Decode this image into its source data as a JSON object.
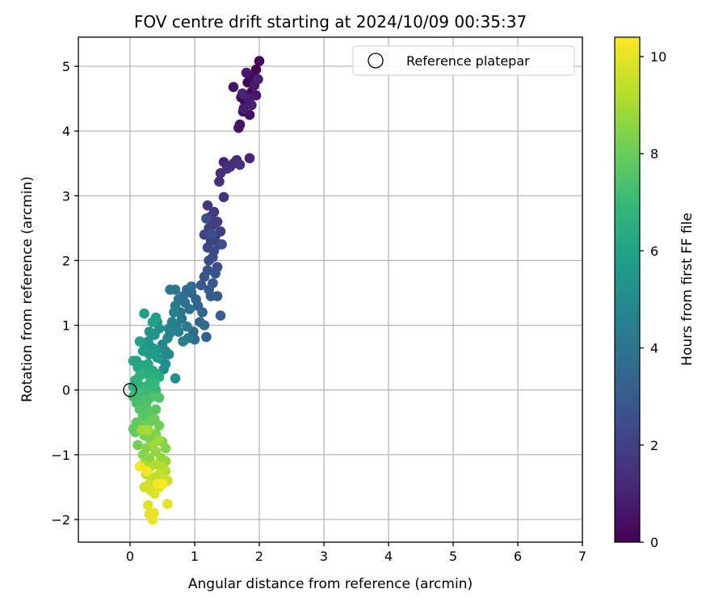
{
  "chart_data": {
    "type": "scatter",
    "title": "FOV centre drift starting at 2024/10/09 00:35:37",
    "xlabel": "Angular distance from reference (arcmin)",
    "ylabel": "Rotation from reference (arcmin)",
    "xlim": [
      -0.8,
      7
    ],
    "ylim": [
      -2.35,
      5.45
    ],
    "xticks": [
      0,
      1,
      2,
      3,
      4,
      5,
      6,
      7
    ],
    "yticks": [
      -2,
      -1,
      0,
      1,
      2,
      3,
      4,
      5
    ],
    "grid": true,
    "legend": {
      "placement": "top-right",
      "entries": [
        {
          "label": "Reference platepar",
          "marker": "open-circle"
        }
      ]
    },
    "reference_point": {
      "x": 0,
      "y": 0
    },
    "colorbar": {
      "label": "Hours from first FF file",
      "colormap": "viridis",
      "range": [
        0,
        10.4
      ],
      "ticks": [
        0,
        2,
        4,
        6,
        8,
        10
      ],
      "colors": [
        "#440154",
        "#482878",
        "#3e4989",
        "#31688e",
        "#26828e",
        "#1f9e89",
        "#35b779",
        "#6ece58",
        "#b5de2b",
        "#fde725"
      ]
    },
    "series": [
      {
        "points": [
          [
            1.95,
            4.95
          ],
          [
            1.82,
            4.75
          ],
          [
            2.0,
            5.08
          ],
          [
            1.88,
            4.6
          ],
          [
            1.72,
            4.52
          ],
          [
            1.78,
            4.45
          ],
          [
            1.9,
            4.85
          ],
          [
            1.75,
            4.3
          ],
          [
            1.85,
            4.25
          ],
          [
            1.7,
            4.1
          ],
          [
            1.68,
            4.05
          ],
          [
            1.6,
            4.68
          ],
          [
            1.95,
            4.55
          ],
          [
            1.8,
            4.9
          ],
          [
            1.92,
            4.7
          ],
          [
            1.84,
            4.5
          ],
          [
            1.76,
            4.35
          ],
          [
            1.88,
            4.4
          ],
          [
            1.98,
            4.8
          ],
          [
            1.74,
            4.58
          ],
          [
            1.85,
            3.58
          ],
          [
            1.65,
            3.55
          ],
          [
            1.45,
            3.52
          ],
          [
            1.55,
            3.45
          ],
          [
            1.4,
            3.35
          ],
          [
            1.38,
            3.22
          ],
          [
            1.6,
            3.5
          ],
          [
            1.5,
            3.42
          ],
          [
            1.7,
            3.48
          ],
          [
            1.45,
            2.98
          ],
          [
            1.2,
            2.85
          ],
          [
            1.3,
            2.75
          ],
          [
            1.25,
            2.68
          ],
          [
            1.35,
            2.6
          ],
          [
            1.28,
            2.55
          ],
          [
            1.22,
            2.5
          ],
          [
            1.4,
            2.45
          ],
          [
            1.15,
            2.4
          ],
          [
            1.32,
            2.38
          ],
          [
            1.25,
            2.3
          ],
          [
            1.38,
            2.25
          ],
          [
            1.2,
            2.2
          ],
          [
            1.3,
            2.15
          ],
          [
            1.28,
            2.05
          ],
          [
            1.22,
            2.0
          ],
          [
            1.35,
            1.9
          ],
          [
            1.42,
            2.25
          ],
          [
            1.18,
            2.65
          ],
          [
            1.26,
            2.42
          ],
          [
            1.2,
            1.85
          ],
          [
            1.32,
            1.8
          ],
          [
            1.15,
            1.75
          ],
          [
            1.28,
            1.65
          ],
          [
            1.22,
            1.55
          ],
          [
            1.1,
            1.62
          ],
          [
            1.35,
            1.45
          ],
          [
            1.25,
            1.45
          ],
          [
            1.4,
            1.15
          ],
          [
            1.18,
            0.82
          ],
          [
            1.05,
            1.3
          ],
          [
            1.12,
            1.2
          ],
          [
            0.95,
            1.5
          ],
          [
            1.02,
            1.4
          ],
          [
            1.08,
            1.05
          ],
          [
            0.98,
            0.9
          ],
          [
            1.0,
            0.78
          ],
          [
            1.15,
            1.0
          ],
          [
            0.88,
            1.55
          ],
          [
            0.95,
            1.6
          ],
          [
            0.82,
            1.45
          ],
          [
            0.85,
            1.35
          ],
          [
            0.92,
            1.25
          ],
          [
            0.75,
            1.4
          ],
          [
            0.7,
            1.55
          ],
          [
            0.62,
            1.55
          ],
          [
            0.78,
            1.2
          ],
          [
            0.8,
            1.1
          ],
          [
            0.72,
            1.0
          ],
          [
            0.88,
            0.98
          ],
          [
            0.9,
            0.8
          ],
          [
            0.82,
            0.75
          ],
          [
            0.75,
            0.9
          ],
          [
            0.7,
            1.3
          ],
          [
            0.68,
            1.2
          ],
          [
            0.65,
            1.05
          ],
          [
            0.6,
            0.95
          ],
          [
            0.62,
            0.88
          ],
          [
            0.58,
            0.8
          ],
          [
            0.5,
            0.7
          ],
          [
            0.55,
            0.6
          ],
          [
            0.6,
            0.55
          ],
          [
            0.48,
            0.48
          ],
          [
            0.55,
            0.4
          ],
          [
            0.52,
            0.32
          ],
          [
            0.7,
            0.18
          ],
          [
            0.45,
            0.95
          ],
          [
            0.42,
            1.05
          ],
          [
            0.38,
            0.85
          ],
          [
            0.3,
            0.9
          ],
          [
            0.28,
            0.75
          ],
          [
            0.35,
            0.65
          ],
          [
            0.25,
            0.7
          ],
          [
            0.4,
            0.6
          ],
          [
            0.42,
            0.5
          ],
          [
            0.3,
            0.55
          ],
          [
            0.2,
            0.6
          ],
          [
            0.22,
            1.18
          ],
          [
            0.4,
            1.12
          ],
          [
            0.35,
            1.05
          ],
          [
            0.15,
            0.75
          ],
          [
            0.1,
            0.45
          ],
          [
            0.05,
            0.45
          ],
          [
            0.12,
            0.35
          ],
          [
            0.2,
            0.38
          ],
          [
            0.28,
            0.4
          ],
          [
            0.35,
            0.3
          ],
          [
            0.4,
            0.25
          ],
          [
            0.45,
            0.2
          ],
          [
            0.32,
            0.2
          ],
          [
            0.25,
            0.25
          ],
          [
            0.15,
            0.22
          ],
          [
            0.08,
            0.15
          ],
          [
            0.05,
            0.05
          ],
          [
            0.12,
            0.1
          ],
          [
            0.18,
            0.05
          ],
          [
            0.3,
            0.1
          ],
          [
            0.38,
            0.1
          ],
          [
            0.4,
            0.0
          ],
          [
            0.3,
            -0.05
          ],
          [
            0.22,
            -0.02
          ],
          [
            0.15,
            -0.05
          ],
          [
            0.05,
            -0.1
          ],
          [
            0.1,
            -0.2
          ],
          [
            0.18,
            -0.18
          ],
          [
            0.28,
            -0.15
          ],
          [
            0.35,
            -0.1
          ],
          [
            0.45,
            -0.12
          ],
          [
            0.25,
            -0.25
          ],
          [
            0.15,
            -0.3
          ],
          [
            0.2,
            -0.4
          ],
          [
            0.3,
            -0.35
          ],
          [
            0.4,
            -0.3
          ],
          [
            0.1,
            -0.5
          ],
          [
            0.05,
            -0.6
          ],
          [
            0.08,
            -0.65
          ],
          [
            0.2,
            -0.55
          ],
          [
            0.3,
            -0.5
          ],
          [
            0.38,
            -0.45
          ],
          [
            0.45,
            -0.55
          ],
          [
            0.12,
            -0.85
          ],
          [
            0.22,
            -0.7
          ],
          [
            0.3,
            -0.75
          ],
          [
            0.4,
            -0.68
          ],
          [
            0.5,
            -0.8
          ],
          [
            0.55,
            -0.9
          ],
          [
            0.25,
            -0.9
          ],
          [
            0.2,
            -1.0
          ],
          [
            0.3,
            -1.05
          ],
          [
            0.4,
            -0.95
          ],
          [
            0.48,
            -1.05
          ],
          [
            0.55,
            -1.1
          ],
          [
            0.35,
            -0.85
          ],
          [
            0.45,
            -0.78
          ],
          [
            0.18,
            -0.62
          ],
          [
            0.28,
            -0.62
          ],
          [
            0.2,
            -1.15
          ],
          [
            0.3,
            -1.2
          ],
          [
            0.4,
            -1.15
          ],
          [
            0.5,
            -1.18
          ],
          [
            0.55,
            -1.25
          ],
          [
            0.25,
            -1.3
          ],
          [
            0.35,
            -1.35
          ],
          [
            0.45,
            -1.3
          ],
          [
            0.52,
            -1.38
          ],
          [
            0.58,
            -1.4
          ],
          [
            0.3,
            -1.45
          ],
          [
            0.4,
            -1.48
          ],
          [
            0.22,
            -1.5
          ],
          [
            0.32,
            -1.55
          ],
          [
            0.45,
            -1.5
          ],
          [
            0.38,
            -1.6
          ],
          [
            0.28,
            -1.78
          ],
          [
            0.58,
            -1.76
          ],
          [
            0.3,
            -1.92
          ],
          [
            0.35,
            -2.0
          ],
          [
            0.37,
            -1.9
          ],
          [
            0.42,
            -1.45
          ],
          [
            0.15,
            -1.18
          ],
          [
            0.26,
            -1.25
          ],
          [
            0.5,
            -1.45
          ]
        ]
      }
    ]
  }
}
